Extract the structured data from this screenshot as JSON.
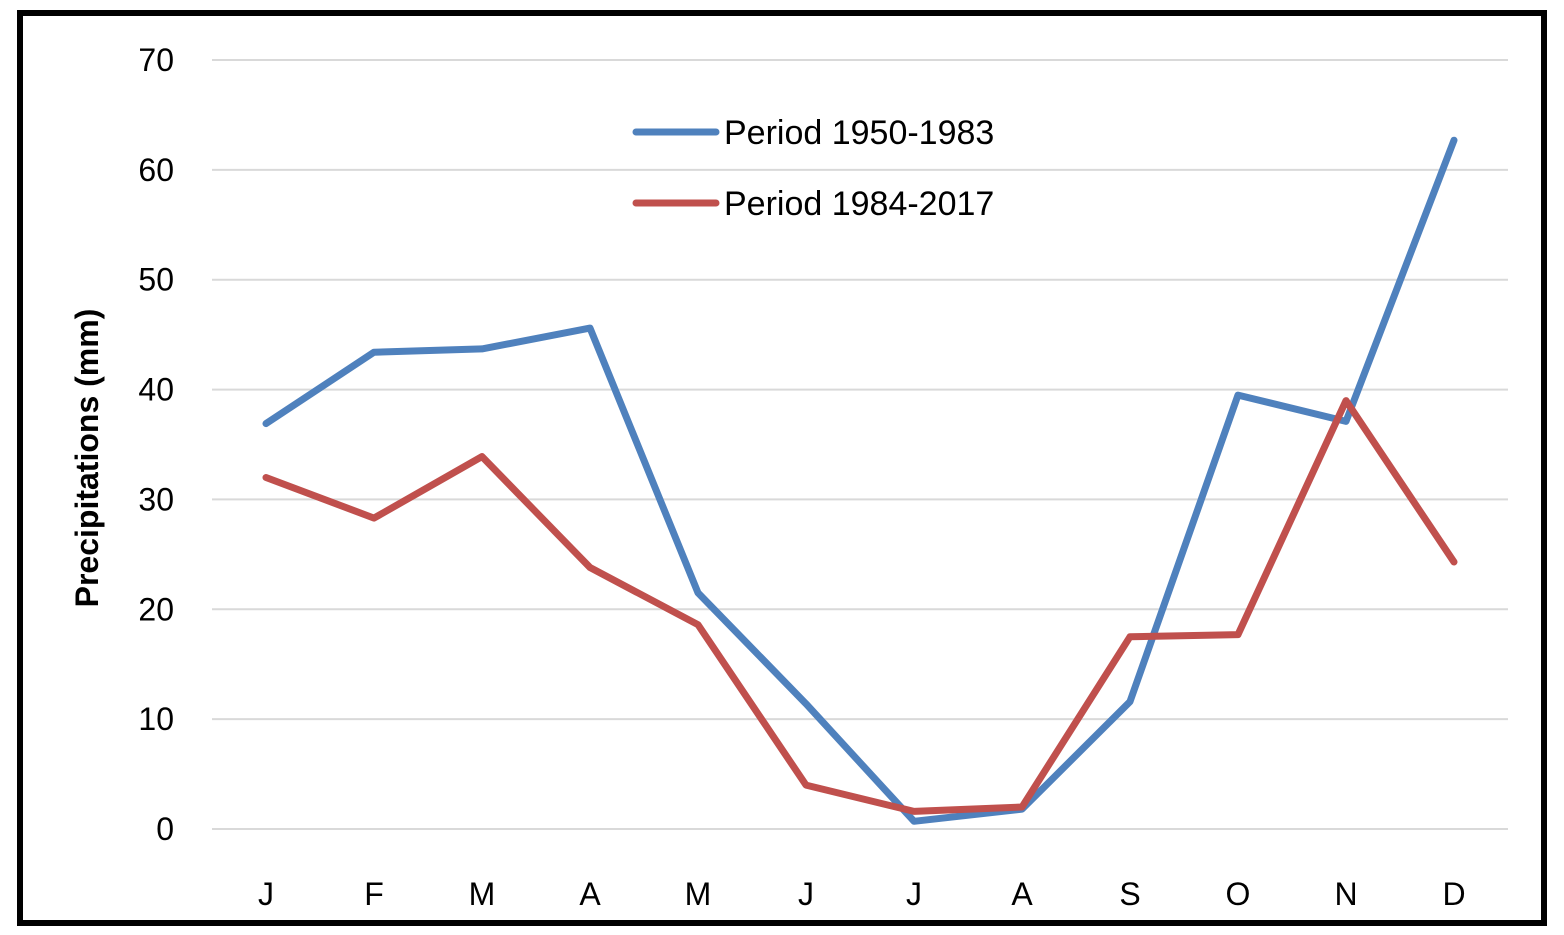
{
  "chart_data": {
    "type": "line",
    "title": "",
    "xlabel": "",
    "ylabel": "Precipitations (mm)",
    "ylim": [
      0,
      70
    ],
    "yticks": [
      0,
      10,
      20,
      30,
      40,
      50,
      60,
      70
    ],
    "grid": true,
    "legend_position": "top-center",
    "categories": [
      "J",
      "F",
      "M",
      "A",
      "M",
      "J",
      "J",
      "A",
      "S",
      "O",
      "N",
      "D"
    ],
    "series": [
      {
        "name": "Period 1950-1983",
        "color": "#4f81bd",
        "values": [
          36.9,
          43.4,
          43.7,
          45.6,
          21.5,
          11.4,
          0.7,
          1.8,
          11.6,
          39.5,
          37.1,
          62.7
        ]
      },
      {
        "name": "Period 1984-2017",
        "color": "#c0504d",
        "values": [
          32.0,
          28.3,
          33.9,
          23.8,
          18.6,
          4.0,
          1.6,
          2.0,
          17.5,
          17.7,
          39.0,
          24.3
        ]
      }
    ]
  },
  "colors": {
    "frame": "#000000",
    "grid": "#d9d9d9",
    "background": "#ffffff"
  }
}
